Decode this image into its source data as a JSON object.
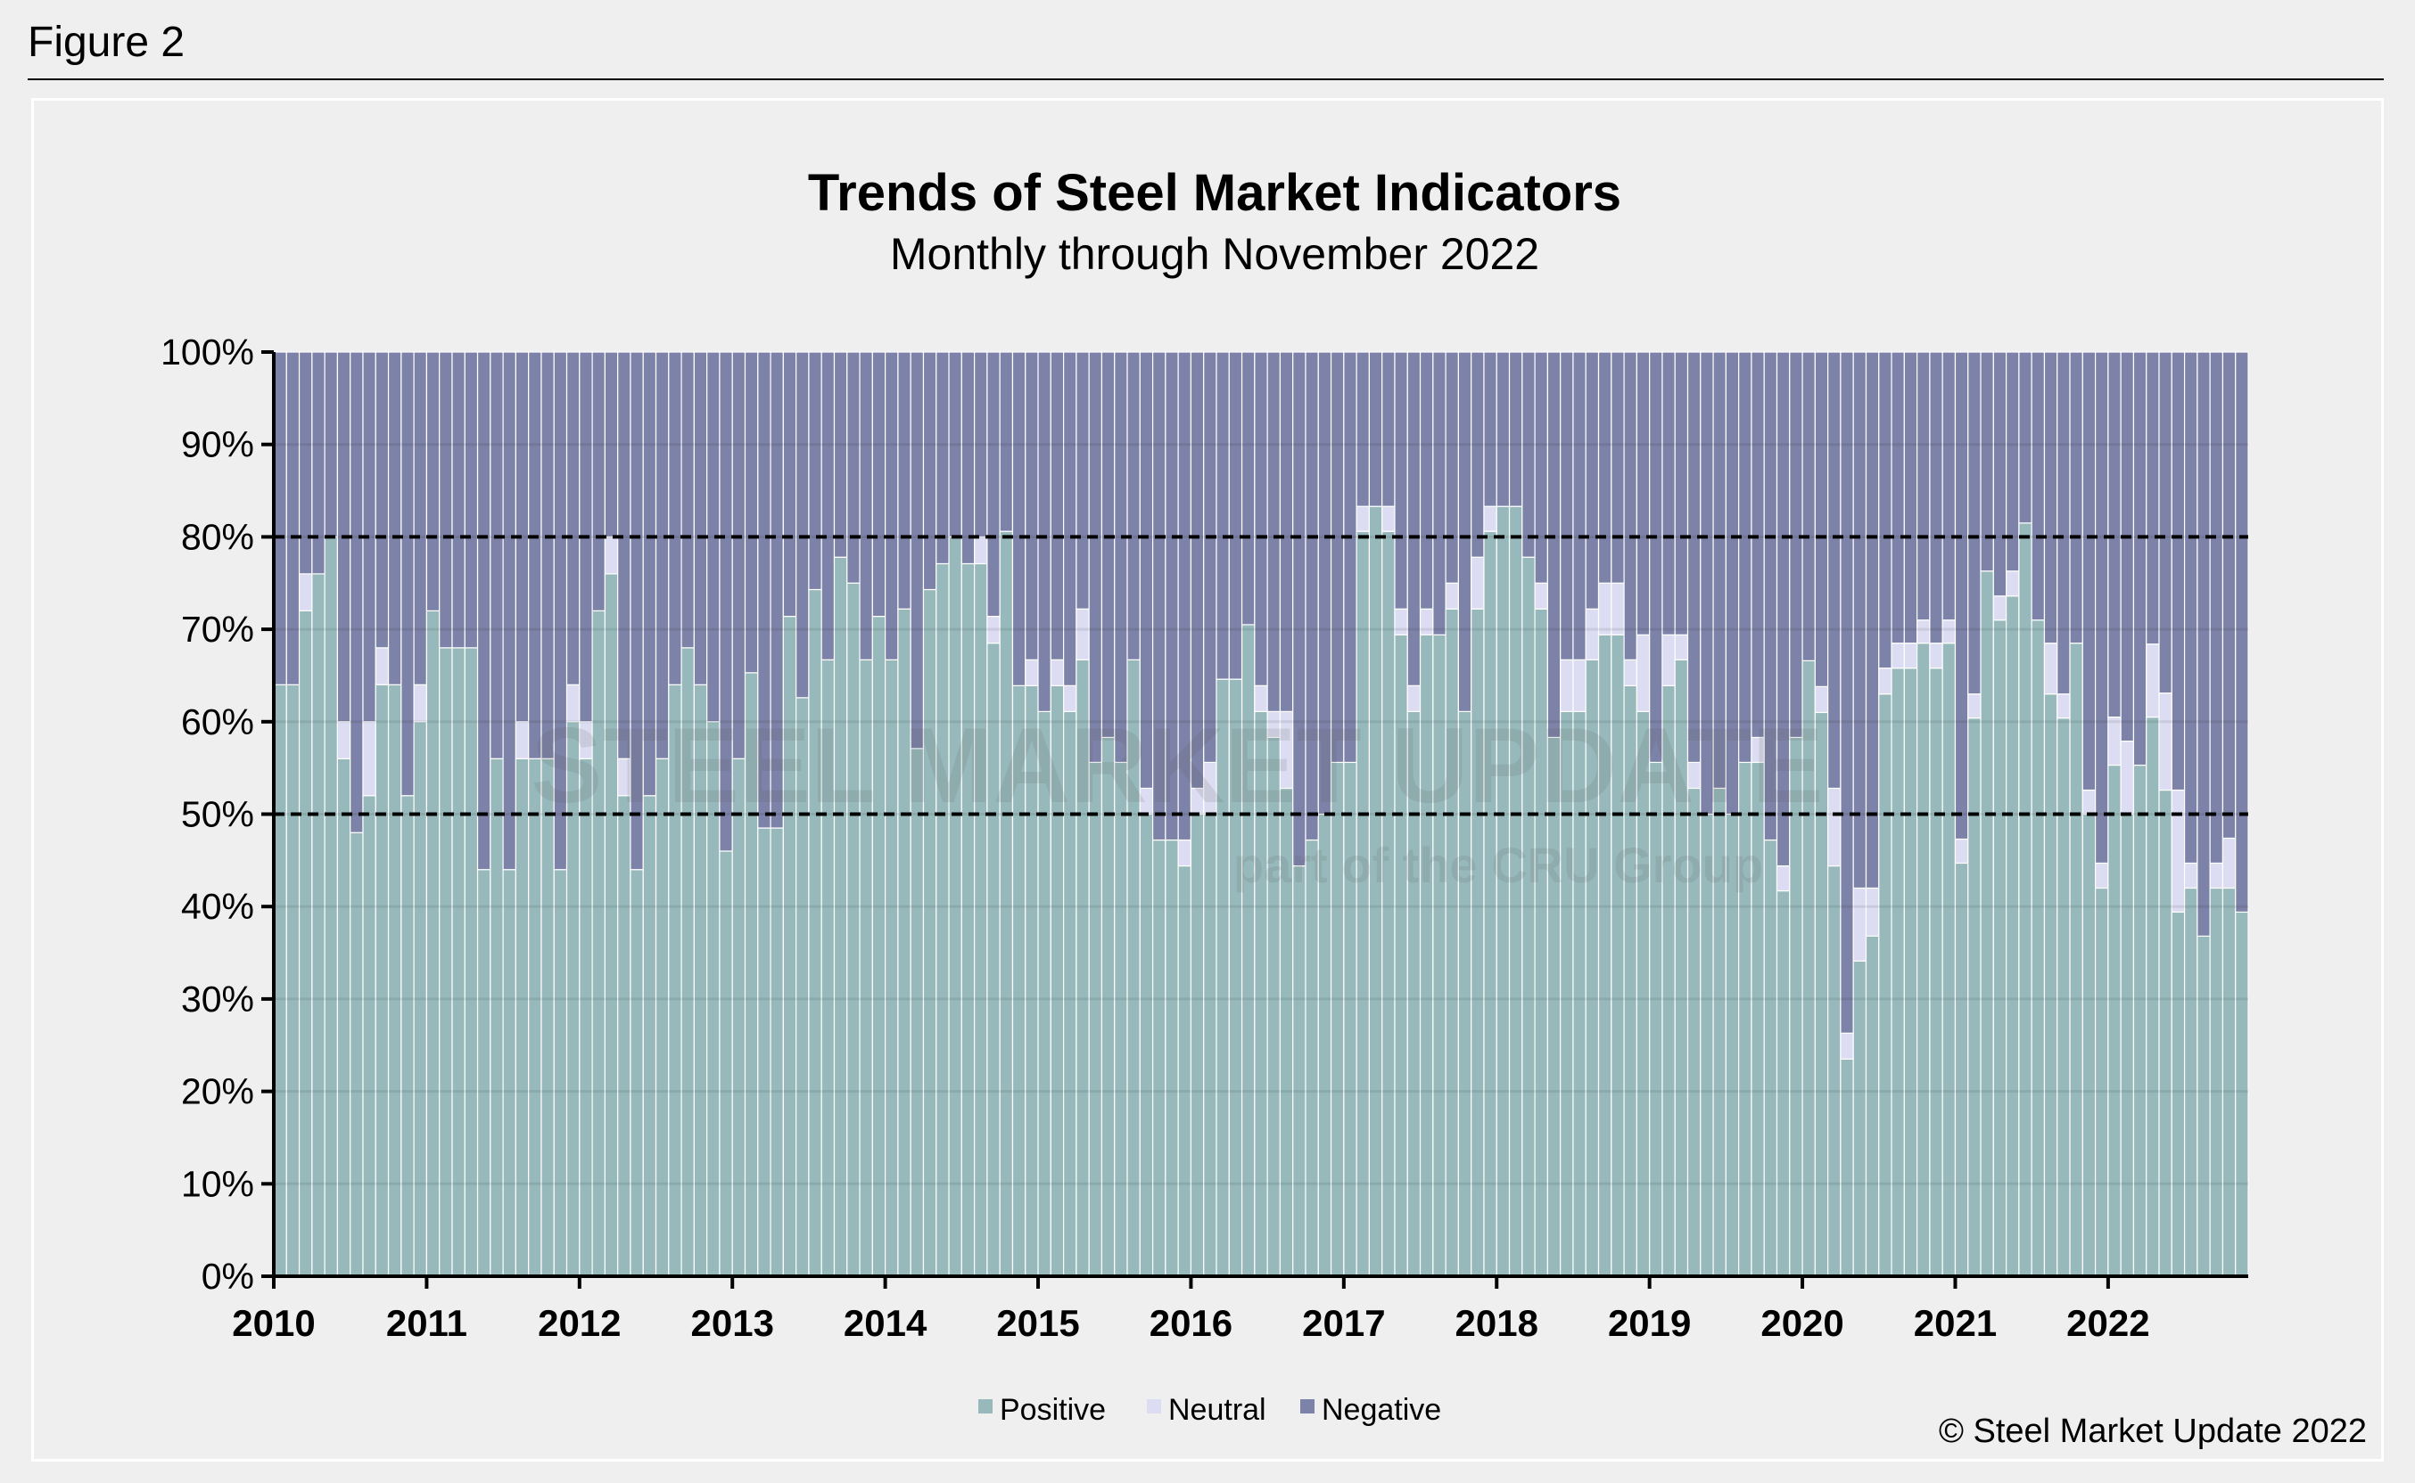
{
  "figure_label": "Figure 2",
  "copyright": "© Steel Market Update 2022",
  "watermark": {
    "line1": "STEEL MARKET UPDATE",
    "line2": "part of the CRU Group"
  },
  "colors": {
    "positive": "#97b9bb",
    "neutral": "#dcdcf2",
    "negative": "#7d82a8"
  },
  "chart_data": {
    "type": "bar",
    "stacked": true,
    "title": "Trends of Steel Market Indicators",
    "subtitle": "Monthly through November 2022",
    "xlabel": "",
    "ylabel": "",
    "ylim": [
      0,
      100
    ],
    "y_ticks": [
      "0%",
      "10%",
      "20%",
      "30%",
      "40%",
      "50%",
      "60%",
      "70%",
      "80%",
      "90%",
      "100%"
    ],
    "x_tick_labels": [
      "2010",
      "2011",
      "2012",
      "2013",
      "2014",
      "2015",
      "2016",
      "2017",
      "2018",
      "2019",
      "2020",
      "2021",
      "2022"
    ],
    "period": {
      "start": "2010-01",
      "end": "2022-11",
      "frequency": "monthly"
    },
    "reference_lines": [
      50,
      80
    ],
    "grid": true,
    "legend_position": "bottom",
    "series_names": [
      "Positive",
      "Neutral",
      "Negative"
    ],
    "positive": [
      64,
      64,
      72,
      76,
      80,
      56,
      48,
      52,
      64,
      64,
      52,
      60,
      72,
      68,
      68,
      68,
      44,
      56,
      44,
      56,
      56,
      56,
      44,
      60,
      56,
      72,
      76,
      52,
      44,
      52,
      56,
      64,
      68,
      64,
      60,
      46,
      56,
      65.3,
      48.5,
      48.5,
      71.4,
      62.6,
      74.3,
      66.7,
      77.8,
      75,
      66.7,
      71.4,
      66.7,
      72.2,
      57.1,
      74.3,
      77.1,
      80,
      77.1,
      77.1,
      68.5,
      80.6,
      63.9,
      63.9,
      61.1,
      63.9,
      61.1,
      66.7,
      55.6,
      58.3,
      55.6,
      66.7,
      50,
      47.2,
      47.2,
      44.4,
      50,
      50,
      64.6,
      64.6,
      70.5,
      61.1,
      58.3,
      52.8,
      44.4,
      47.2,
      50,
      55.6,
      55.6,
      80.6,
      83.3,
      80.6,
      69.4,
      61.1,
      69.4,
      69.4,
      72.2,
      61.1,
      72.2,
      80.6,
      83.3,
      83.3,
      77.8,
      72.2,
      58.3,
      61.1,
      61.1,
      66.7,
      69.4,
      69.4,
      63.9,
      61.1,
      55.6,
      63.9,
      66.7,
      52.8,
      50,
      52.8,
      50,
      55.6,
      55.6,
      47.2,
      41.7,
      58.3,
      66.6,
      61,
      44.4,
      23.5,
      34.1,
      36.8,
      63,
      65.8,
      65.8,
      68.5,
      65.8,
      68.5,
      44.7,
      60.4,
      76.3,
      71,
      73.6,
      81.5,
      71,
      63,
      60.4,
      68.5,
      50,
      42,
      55.3,
      50,
      55.3,
      60.5,
      52.6,
      39.4,
      42,
      36.8,
      42,
      42,
      39.4
    ],
    "neutral": [
      0,
      0,
      4,
      0,
      0,
      4,
      0,
      8,
      4,
      0,
      0,
      4,
      0,
      0,
      0,
      0,
      0,
      0,
      0,
      4,
      0,
      0,
      0,
      4,
      4,
      0,
      4,
      4,
      0,
      0,
      0,
      0,
      0,
      0,
      0,
      0,
      0,
      0,
      0,
      0,
      0,
      0,
      0,
      0,
      0,
      0,
      0,
      0,
      0,
      0,
      0,
      0,
      0,
      0,
      0,
      2.9,
      2.9,
      0,
      0,
      2.8,
      0,
      2.8,
      2.8,
      5.5,
      0,
      0,
      0,
      0,
      2.8,
      0,
      0,
      2.8,
      2.8,
      5.6,
      0,
      0,
      0,
      2.8,
      2.8,
      8.3,
      0,
      0,
      0,
      0,
      0,
      2.7,
      0,
      2.7,
      2.8,
      2.8,
      2.8,
      0,
      2.8,
      0,
      5.6,
      2.7,
      0,
      0,
      0,
      2.8,
      0,
      5.6,
      5.6,
      5.5,
      5.6,
      5.6,
      2.8,
      8.3,
      0,
      5.5,
      2.7,
      2.8,
      0,
      0,
      0,
      0,
      2.7,
      0,
      2.7,
      0,
      0,
      2.8,
      8.4,
      2.8,
      7.9,
      5.2,
      2.8,
      2.7,
      2.7,
      2.5,
      2.7,
      2.5,
      2.6,
      2.6,
      0,
      2.6,
      2.7,
      0,
      0,
      5.5,
      2.6,
      0,
      2.6,
      2.7,
      5.2,
      7.9,
      0,
      7.9,
      10.5,
      13.2,
      2.7,
      0,
      2.7,
      5.4,
      0
    ]
  }
}
